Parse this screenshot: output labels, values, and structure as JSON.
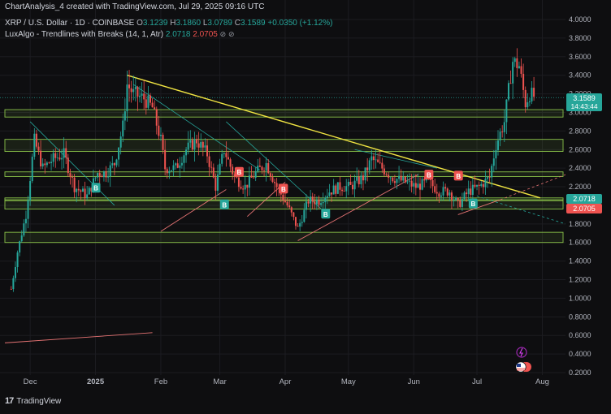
{
  "header": {
    "attribution": "ChartAnalysis_4 created with TradingView.com, Jul 29, 2025 09:16 UTC",
    "symbol": "XRP / U.S. Dollar · 1D · COINBASE",
    "o_label": "O",
    "o_value": "3.1239",
    "h_label": "H",
    "h_value": "3.1860",
    "l_label": "L",
    "l_value": "3.0789",
    "c_label": "C",
    "c_value": "3.1589",
    "change": "+0.0350 (+1.12%)",
    "indicator_name": "LuxAlgo - Trendlines with Breaks (14, 1, Atr)",
    "indicator_upper": "2.0718",
    "indicator_lower": "2.0705"
  },
  "footer": {
    "brand": "TradingView",
    "logo_text": "17"
  },
  "price_tags": {
    "last_price": "3.1589",
    "countdown": "14:43:44",
    "upper_band": "2.0718",
    "lower_band": "2.0705"
  },
  "icons": {
    "last_icon": "lightning-icon",
    "flag_icon": "us-flag-icon"
  },
  "colors": {
    "up": "#26a69a",
    "down": "#ef5350",
    "zone_border": "#8bc34a",
    "trendline": "#f0e442",
    "background": "#0e0e10"
  },
  "chart_data": {
    "type": "candlestick",
    "x_axis_labels": [
      "Dec",
      "2025",
      "Feb",
      "Mar",
      "Apr",
      "May",
      "Jun",
      "Jul",
      "Aug"
    ],
    "y_axis_labels": [
      "4.0000",
      "3.8000",
      "3.6000",
      "3.4000",
      "3.2000",
      "3.0000",
      "2.8000",
      "2.6000",
      "2.4000",
      "2.2000",
      "2.0000",
      "1.8000",
      "1.6000",
      "1.4000",
      "1.2000",
      "1.0000",
      "0.8000",
      "0.6000",
      "0.4000",
      "0.2000"
    ],
    "ylim": [
      0.2,
      4.0
    ],
    "grid": true,
    "price_path": [
      [
        "2024-11-22",
        1.1
      ],
      [
        "2024-11-25",
        1.5
      ],
      [
        "2024-11-29",
        1.9
      ],
      [
        "2024-12-03",
        2.7
      ],
      [
        "2024-12-07",
        2.4
      ],
      [
        "2024-12-12",
        2.5
      ],
      [
        "2024-12-17",
        2.55
      ],
      [
        "2024-12-22",
        2.2
      ],
      [
        "2024-12-28",
        2.1
      ],
      [
        "2025-01-02",
        2.35
      ],
      [
        "2025-01-06",
        2.35
      ],
      [
        "2025-01-10",
        2.45
      ],
      [
        "2025-01-14",
        2.85
      ],
      [
        "2025-01-16",
        3.3
      ],
      [
        "2025-01-19",
        3.2
      ],
      [
        "2025-01-24",
        3.15
      ],
      [
        "2025-01-28",
        3.05
      ],
      [
        "2025-02-01",
        2.7
      ],
      [
        "2025-02-03",
        2.4
      ],
      [
        "2025-02-08",
        2.4
      ],
      [
        "2025-02-13",
        2.6
      ],
      [
        "2025-02-18",
        2.7
      ],
      [
        "2025-02-23",
        2.55
      ],
      [
        "2025-02-27",
        2.2
      ],
      [
        "2025-03-03",
        2.6
      ],
      [
        "2025-03-08",
        2.3
      ],
      [
        "2025-03-13",
        2.2
      ],
      [
        "2025-03-18",
        2.35
      ],
      [
        "2025-03-23",
        2.45
      ],
      [
        "2025-03-28",
        2.2
      ],
      [
        "2025-04-02",
        2.0
      ],
      [
        "2025-04-07",
        1.75
      ],
      [
        "2025-04-12",
        2.05
      ],
      [
        "2025-04-17",
        2.05
      ],
      [
        "2025-04-22",
        2.15
      ],
      [
        "2025-04-27",
        2.2
      ],
      [
        "2025-05-02",
        2.2
      ],
      [
        "2025-05-08",
        2.3
      ],
      [
        "2025-05-12",
        2.5
      ],
      [
        "2025-05-17",
        2.4
      ],
      [
        "2025-05-22",
        2.3
      ],
      [
        "2025-05-28",
        2.25
      ],
      [
        "2025-06-02",
        2.2
      ],
      [
        "2025-06-08",
        2.25
      ],
      [
        "2025-06-13",
        2.15
      ],
      [
        "2025-06-18",
        2.15
      ],
      [
        "2025-06-22",
        2.0
      ],
      [
        "2025-06-27",
        2.15
      ],
      [
        "2025-07-02",
        2.2
      ],
      [
        "2025-07-07",
        2.3
      ],
      [
        "2025-07-10",
        2.65
      ],
      [
        "2025-07-14",
        2.9
      ],
      [
        "2025-07-17",
        3.4
      ],
      [
        "2025-07-18",
        3.55
      ],
      [
        "2025-07-21",
        3.5
      ],
      [
        "2025-07-24",
        3.1
      ],
      [
        "2025-07-26",
        3.2
      ],
      [
        "2025-07-29",
        3.1589
      ]
    ],
    "zones": [
      {
        "low": 2.95,
        "high": 3.03
      },
      {
        "low": 2.58,
        "high": 2.71
      },
      {
        "low": 2.31,
        "high": 2.36
      },
      {
        "low": 2.05,
        "high": 2.08
      },
      {
        "low": 1.96,
        "high": 2.06
      },
      {
        "low": 1.6,
        "high": 1.71
      }
    ],
    "main_trendline": [
      [
        "2025-01-16",
        3.4
      ],
      [
        "2025-07-31",
        2.08
      ]
    ],
    "buy_markers": [
      [
        "2025-01-01",
        2.19
      ],
      [
        "2025-03-03",
        2.01
      ],
      [
        "2025-04-20",
        1.91
      ],
      [
        "2025-06-29",
        2.02
      ]
    ],
    "sell_markers": [
      [
        "2025-03-10",
        2.36
      ],
      [
        "2025-03-31",
        2.18
      ],
      [
        "2025-06-08",
        2.33
      ],
      [
        "2025-06-22",
        2.32
      ]
    ],
    "support_lines": [
      [
        [
          "2025-02-01",
          1.72
        ],
        [
          "2025-03-04",
          2.17
        ]
      ],
      [
        [
          "2025-03-14",
          1.88
        ],
        [
          "2025-04-01",
          2.25
        ]
      ],
      [
        [
          "2025-04-07",
          1.62
        ],
        [
          "2025-06-03",
          2.33
        ]
      ],
      [
        [
          "2025-06-22",
          1.9
        ],
        [
          "2025-07-12",
          2.06
        ]
      ]
    ],
    "resistance_lines": [
      [
        [
          "2024-12-01",
          2.9
        ],
        [
          "2025-01-10",
          2.0
        ]
      ],
      [
        [
          "2025-01-19",
          3.3
        ],
        [
          "2025-03-20",
          2.38
        ]
      ],
      [
        [
          "2025-03-04",
          2.9
        ],
        [
          "2025-04-22",
          1.88
        ]
      ],
      [
        [
          "2025-05-04",
          2.6
        ],
        [
          "2025-06-12",
          2.4
        ]
      ]
    ],
    "legacy_trendline": [
      [
        "2024-11-19",
        0.52
      ],
      [
        "2025-01-28",
        0.63
      ]
    ]
  }
}
